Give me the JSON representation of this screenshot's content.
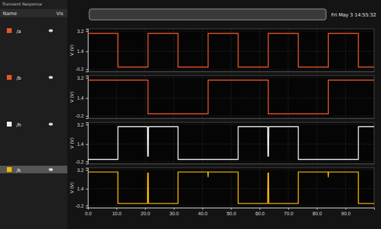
{
  "header": {
    "title": "Transient Response",
    "timestamp": "Fri May 3 14:55:32",
    "columns": [
      "Name",
      "Vis"
    ]
  },
  "chart_data": [
    {
      "type": "line",
      "ylabel": "V (V)",
      "xlim": [
        0,
        100
      ],
      "xticks": [
        0,
        10,
        20,
        30,
        40,
        50,
        60,
        70,
        80,
        90
      ],
      "ylim": [
        -0.4,
        3.4
      ],
      "yticks": [
        -0.2,
        1.4,
        3.2
      ],
      "grid": true,
      "tick_labels": "y",
      "x": [
        0,
        10.5,
        10.5,
        21,
        21,
        31.5,
        31.5,
        42,
        42,
        52.5,
        52.5,
        63,
        63,
        73.5,
        73.5,
        84,
        84,
        94.5,
        94.5,
        100
      ],
      "series": [
        {
          "name": "/a",
          "color": "#e8552a",
          "values": [
            3,
            3,
            0,
            0,
            3,
            3,
            0,
            0,
            3,
            3,
            0,
            0,
            3,
            3,
            0,
            0,
            3,
            3,
            0,
            0
          ]
        }
      ]
    },
    {
      "type": "line",
      "ylabel": "V (V)",
      "xlim": [
        0,
        100
      ],
      "xticks": [
        0,
        10,
        20,
        30,
        40,
        50,
        60,
        70,
        80,
        90
      ],
      "ylim": [
        -0.4,
        3.4
      ],
      "yticks": [
        -0.2,
        1.4,
        3.2
      ],
      "grid": true,
      "tick_labels": "y",
      "x": [
        0,
        21,
        21,
        42,
        42,
        63,
        63,
        84,
        84,
        100
      ],
      "series": [
        {
          "name": "/b",
          "color": "#e8552a",
          "values": [
            3,
            3,
            0,
            0,
            3,
            3,
            0,
            0,
            3,
            3
          ]
        }
      ]
    },
    {
      "type": "line",
      "ylabel": "V (V)",
      "xlim": [
        0,
        100
      ],
      "xticks": [
        0,
        10,
        20,
        30,
        40,
        50,
        60,
        70,
        80,
        90
      ],
      "ylim": [
        -0.4,
        3.4
      ],
      "yticks": [
        -0.2,
        1.4,
        3.2
      ],
      "grid": true,
      "tick_labels": "y",
      "x": [
        0,
        10.5,
        10.5,
        20.8,
        20.9,
        21.1,
        21.2,
        31.5,
        31.5,
        52.5,
        52.5,
        62.8,
        62.9,
        63.1,
        63.2,
        73.5,
        73.5,
        94.5,
        94.5,
        100
      ],
      "series": [
        {
          "name": "/h",
          "color": "#f0f0f0",
          "values": [
            0,
            0,
            3,
            3,
            0.3,
            0.3,
            3,
            3,
            0,
            0,
            3,
            3,
            0.3,
            0.3,
            3,
            3,
            0,
            0,
            3,
            3
          ]
        }
      ]
    },
    {
      "type": "line",
      "ylabel": "V (V)",
      "xlim": [
        0,
        100
      ],
      "xticks": [
        {
          "value": 0,
          "label": "0.0"
        },
        {
          "value": 10,
          "label": "10.0"
        },
        {
          "value": 20,
          "label": "20.0"
        },
        {
          "value": 30,
          "label": "30.0"
        },
        {
          "value": 40,
          "label": "40.0"
        },
        {
          "value": 50,
          "label": "50.0"
        },
        {
          "value": 60,
          "label": "60.0"
        },
        {
          "value": 70,
          "label": "70.0"
        },
        {
          "value": 80,
          "label": "80.0"
        },
        {
          "value": 90,
          "label": "90.0"
        }
      ],
      "ylim": [
        -0.4,
        3.4
      ],
      "yticks": [
        -0.2,
        1.4,
        3.2
      ],
      "grid": true,
      "x": [
        0,
        10.5,
        10.5,
        20.8,
        20.9,
        21.1,
        21.2,
        31.5,
        31.5,
        41.9,
        42,
        42.1,
        52.5,
        52.5,
        62.8,
        62.9,
        63.1,
        63.2,
        73.5,
        73.5,
        83.9,
        84,
        84.1,
        94.5,
        94.5,
        100
      ],
      "series": [
        {
          "name": "/k",
          "color": "#f5b800",
          "values": [
            3,
            3,
            0,
            0,
            2.9,
            2.9,
            0,
            0,
            3,
            3,
            2.5,
            3,
            3,
            0,
            0,
            2.9,
            2.9,
            0,
            0,
            3,
            3,
            2.5,
            3,
            3,
            0,
            0
          ]
        }
      ]
    }
  ]
}
